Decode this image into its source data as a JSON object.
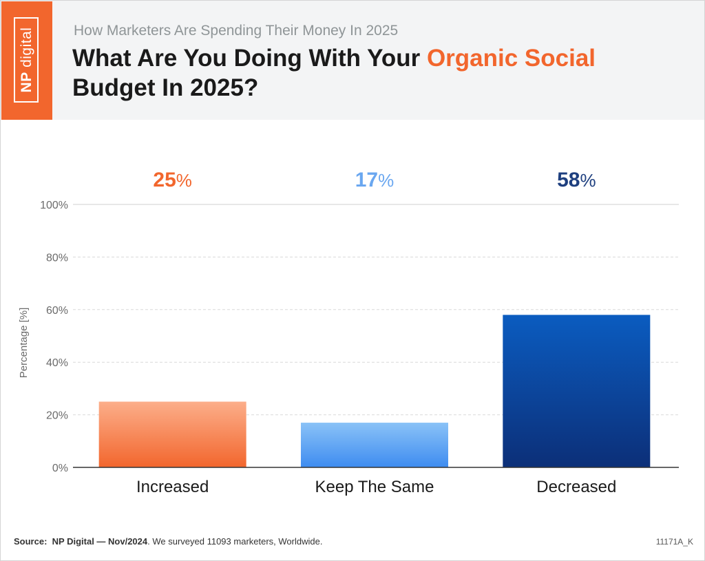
{
  "header": {
    "subtitle": "How Marketers Are Spending Their Money In 2025",
    "title_part1": "What Are You Doing With Your ",
    "title_highlight": "Organic Social",
    "title_part2": "Budget In 2025?",
    "highlight_color": "#f2662d"
  },
  "logo": {
    "text_np": "NP",
    "text_digital": "digital",
    "icon": "np-digital-logo"
  },
  "chart_data": {
    "type": "bar",
    "categories": [
      "Increased",
      "Keep The Same",
      "Decreased"
    ],
    "values": [
      25,
      17,
      58
    ],
    "value_labels": [
      "25%",
      "17%",
      "58%"
    ],
    "label_colors": [
      "#f2662d",
      "#6aa7f0",
      "#1e3f7f"
    ],
    "bar_gradients": [
      [
        "#fcae8a",
        "#f2662d"
      ],
      [
        "#8ac2f7",
        "#3e8cf0"
      ],
      [
        "#0b5cc0",
        "#0c2f78"
      ]
    ],
    "ylabel": "Percentage [%]",
    "ylim": [
      0,
      100
    ],
    "yticks": [
      0,
      20,
      40,
      60,
      80,
      100
    ],
    "ytick_labels": [
      "0%",
      "20%",
      "40%",
      "60%",
      "80%",
      "100%"
    ],
    "grid": true
  },
  "footer": {
    "source_label": "Source:",
    "source_name": "NP Digital — Nov/2024",
    "source_rest": ". We surveyed 11093 marketers, Worldwide.",
    "code": "11171A_K"
  }
}
